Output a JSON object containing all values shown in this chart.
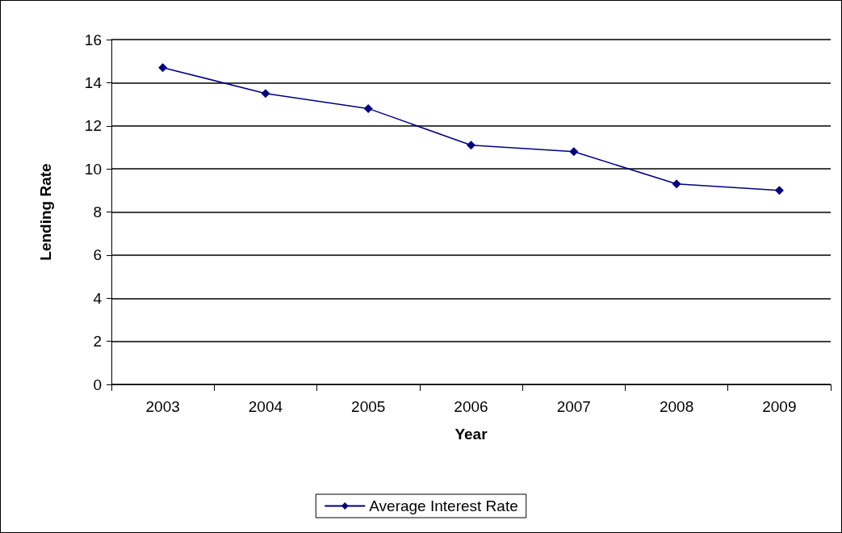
{
  "chart_data": {
    "type": "line",
    "xlabel": "Year",
    "ylabel": "Lending Rate",
    "categories": [
      "2003",
      "2004",
      "2005",
      "2006",
      "2007",
      "2008",
      "2009"
    ],
    "series": [
      {
        "name": "Average Interest Rate",
        "color": "#000080",
        "values": [
          14.7,
          13.5,
          12.8,
          11.1,
          10.8,
          9.3,
          9.0
        ]
      }
    ],
    "ylim": [
      0,
      16
    ],
    "yticks": [
      0,
      2,
      4,
      6,
      8,
      10,
      12,
      14,
      16
    ],
    "grid": "y",
    "legend": "bottom",
    "marker": "diamond",
    "line_style": "solid"
  }
}
